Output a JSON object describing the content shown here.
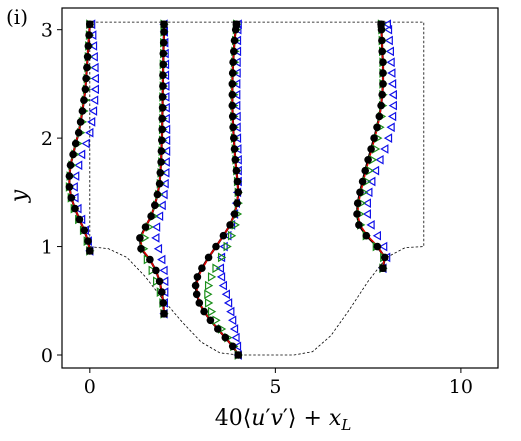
{
  "chart_data": {
    "type": "scatter",
    "panel_label": "(i)",
    "xlabel": "40⟨u′v′⟩ + x_L",
    "ylabel": "y",
    "xlim": [
      -0.75,
      11
    ],
    "ylim": [
      -0.12,
      3.2
    ],
    "xticks": [
      0,
      5,
      10
    ],
    "yticks": [
      0,
      1,
      2,
      3
    ],
    "grid": false,
    "legend": "none",
    "colors": {
      "black": "#000000",
      "red": "#e00000",
      "green": "#1a8f1a",
      "blue": "#1010e8",
      "boundary": "#000000"
    },
    "boundary": {
      "x": [
        0,
        0.5,
        1,
        1.5,
        2,
        2.5,
        3,
        3.5,
        4,
        4.5,
        5,
        5.5,
        6,
        6.5,
        7,
        7.5,
        8,
        8.5,
        9,
        9,
        0,
        0
      ],
      "y": [
        1.0,
        0.98,
        0.9,
        0.72,
        0.5,
        0.3,
        0.12,
        0.02,
        0.0,
        0.0,
        0.0,
        0.0,
        0.03,
        0.18,
        0.42,
        0.68,
        0.9,
        0.99,
        1.0,
        3.07,
        3.07,
        1.0
      ]
    },
    "profiles": [
      {
        "base_x": 0,
        "y": [
          0.96,
          1.05,
          1.15,
          1.25,
          1.35,
          1.45,
          1.55,
          1.65,
          1.75,
          1.85,
          1.95,
          2.05,
          2.15,
          2.25,
          2.35,
          2.45,
          2.55,
          2.65,
          2.75,
          2.85,
          2.95,
          3.05
        ],
        "black": [
          0.0,
          -0.05,
          -0.15,
          -0.28,
          -0.4,
          -0.5,
          -0.55,
          -0.55,
          -0.52,
          -0.45,
          -0.38,
          -0.3,
          -0.25,
          -0.2,
          -0.16,
          -0.12,
          -0.1,
          -0.08,
          -0.06,
          -0.04,
          -0.02,
          0.0
        ],
        "red": [
          0.0,
          -0.05,
          -0.15,
          -0.28,
          -0.4,
          -0.5,
          -0.55,
          -0.55,
          -0.52,
          -0.45,
          -0.38,
          -0.3,
          -0.25,
          -0.2,
          -0.16,
          -0.12,
          -0.1,
          -0.08,
          -0.06,
          -0.04,
          -0.02,
          0.0
        ],
        "green": [
          0.0,
          -0.07,
          -0.17,
          -0.3,
          -0.42,
          -0.5,
          -0.55,
          -0.53,
          -0.48,
          -0.4,
          -0.32,
          -0.25,
          -0.2,
          -0.16,
          -0.12,
          -0.09,
          -0.07,
          -0.05,
          -0.04,
          -0.03,
          -0.01,
          0.0
        ],
        "blue": [
          0.0,
          -0.04,
          -0.12,
          -0.22,
          -0.32,
          -0.4,
          -0.42,
          -0.38,
          -0.3,
          -0.22,
          -0.1,
          0.0,
          0.05,
          0.1,
          0.13,
          0.15,
          0.15,
          0.14,
          0.12,
          0.1,
          0.08,
          0.05
        ],
        "square_idx": [
          0,
          21
        ]
      },
      {
        "base_x": 2,
        "y": [
          0.38,
          0.48,
          0.58,
          0.68,
          0.78,
          0.88,
          0.98,
          1.08,
          1.18,
          1.28,
          1.38,
          1.48,
          1.58,
          1.68,
          1.78,
          1.88,
          1.98,
          2.08,
          2.18,
          2.28,
          2.38,
          2.48,
          2.58,
          2.68,
          2.78,
          2.88,
          2.98,
          3.05
        ],
        "black": [
          0.0,
          -0.02,
          -0.06,
          -0.12,
          -0.22,
          -0.38,
          -0.62,
          -0.65,
          -0.5,
          -0.35,
          -0.25,
          -0.18,
          -0.12,
          -0.1,
          -0.08,
          -0.07,
          -0.06,
          -0.05,
          -0.05,
          -0.04,
          -0.04,
          -0.03,
          -0.03,
          -0.02,
          -0.02,
          -0.01,
          0.0,
          0.0
        ],
        "red": [
          0.0,
          -0.02,
          -0.06,
          -0.12,
          -0.22,
          -0.38,
          -0.6,
          -0.63,
          -0.5,
          -0.35,
          -0.25,
          -0.18,
          -0.12,
          -0.1,
          -0.08,
          -0.07,
          -0.06,
          -0.05,
          -0.05,
          -0.04,
          -0.04,
          -0.03,
          -0.03,
          -0.02,
          -0.02,
          -0.01,
          0.0,
          0.0
        ],
        "green": [
          0.0,
          -0.03,
          -0.1,
          -0.2,
          -0.32,
          -0.45,
          -0.55,
          -0.52,
          -0.4,
          -0.28,
          -0.2,
          -0.14,
          -0.1,
          -0.08,
          -0.06,
          -0.05,
          -0.04,
          -0.04,
          -0.03,
          -0.03,
          -0.03,
          -0.02,
          -0.02,
          -0.02,
          -0.01,
          -0.01,
          0.0,
          0.0
        ],
        "blue": [
          0.0,
          0.01,
          0.02,
          0.02,
          0.0,
          -0.06,
          -0.15,
          -0.22,
          -0.2,
          -0.12,
          -0.05,
          0.0,
          0.03,
          0.05,
          0.06,
          0.07,
          0.07,
          0.07,
          0.06,
          0.06,
          0.05,
          0.05,
          0.04,
          0.04,
          0.03,
          0.02,
          0.01,
          0.0
        ],
        "square_idx": [
          0,
          27
        ]
      },
      {
        "base_x": 4,
        "y": [
          0.0,
          0.08,
          0.16,
          0.24,
          0.32,
          0.4,
          0.48,
          0.56,
          0.64,
          0.72,
          0.8,
          0.9,
          1.0,
          1.1,
          1.2,
          1.3,
          1.4,
          1.5,
          1.6,
          1.7,
          1.8,
          1.9,
          2.0,
          2.1,
          2.2,
          2.3,
          2.4,
          2.5,
          2.6,
          2.7,
          2.8,
          2.9,
          3.0,
          3.05
        ],
        "black": [
          0.0,
          -0.15,
          -0.35,
          -0.55,
          -0.75,
          -0.92,
          -1.05,
          -1.12,
          -1.15,
          -1.1,
          -0.98,
          -0.8,
          -0.6,
          -0.4,
          -0.22,
          -0.1,
          -0.03,
          0.0,
          -0.02,
          -0.05,
          -0.08,
          -0.1,
          -0.12,
          -0.14,
          -0.15,
          -0.16,
          -0.16,
          -0.16,
          -0.15,
          -0.14,
          -0.12,
          -0.1,
          -0.07,
          -0.05
        ],
        "red": [
          0.0,
          -0.15,
          -0.35,
          -0.55,
          -0.75,
          -0.92,
          -1.04,
          -1.1,
          -1.12,
          -1.08,
          -0.96,
          -0.8,
          -0.6,
          -0.4,
          -0.22,
          -0.1,
          -0.03,
          0.0,
          -0.02,
          -0.05,
          -0.08,
          -0.1,
          -0.12,
          -0.14,
          -0.15,
          -0.16,
          -0.16,
          -0.16,
          -0.15,
          -0.14,
          -0.12,
          -0.1,
          -0.07,
          -0.05
        ],
        "green": [
          0.0,
          -0.12,
          -0.28,
          -0.45,
          -0.6,
          -0.72,
          -0.8,
          -0.82,
          -0.8,
          -0.72,
          -0.6,
          -0.45,
          -0.3,
          -0.18,
          -0.08,
          -0.02,
          0.0,
          0.0,
          -0.02,
          -0.04,
          -0.06,
          -0.08,
          -0.1,
          -0.11,
          -0.12,
          -0.12,
          -0.12,
          -0.12,
          -0.11,
          -0.1,
          -0.09,
          -0.07,
          -0.05,
          -0.04
        ],
        "blue": [
          0.0,
          -0.02,
          -0.06,
          -0.1,
          -0.15,
          -0.2,
          -0.26,
          -0.32,
          -0.4,
          -0.45,
          -0.48,
          -0.45,
          -0.38,
          -0.28,
          -0.18,
          -0.1,
          -0.05,
          -0.02,
          0.0,
          0.0,
          0.0,
          -0.01,
          -0.02,
          -0.03,
          -0.03,
          -0.04,
          -0.04,
          -0.04,
          -0.03,
          -0.03,
          -0.02,
          -0.02,
          -0.01,
          0.0
        ],
        "square_idx": [
          0,
          33
        ]
      },
      {
        "base_x": 7.9,
        "y": [
          0.8,
          0.9,
          1.0,
          1.1,
          1.2,
          1.3,
          1.4,
          1.5,
          1.6,
          1.7,
          1.8,
          1.9,
          2.0,
          2.1,
          2.2,
          2.3,
          2.4,
          2.5,
          2.6,
          2.7,
          2.8,
          2.9,
          3.0,
          3.05
        ],
        "black": [
          0.0,
          0.05,
          -0.15,
          -0.45,
          -0.65,
          -0.7,
          -0.68,
          -0.62,
          -0.55,
          -0.48,
          -0.4,
          -0.32,
          -0.24,
          -0.16,
          -0.1,
          -0.05,
          -0.02,
          0.0,
          0.0,
          0.0,
          -0.02,
          -0.03,
          -0.04,
          -0.05
        ],
        "red": [
          0.0,
          0.04,
          -0.14,
          -0.42,
          -0.62,
          -0.68,
          -0.66,
          -0.6,
          -0.53,
          -0.46,
          -0.38,
          -0.3,
          -0.22,
          -0.15,
          -0.09,
          -0.05,
          -0.02,
          0.0,
          0.0,
          0.0,
          -0.02,
          -0.03,
          -0.04,
          -0.05
        ],
        "green": [
          0.0,
          0.02,
          -0.18,
          -0.45,
          -0.6,
          -0.62,
          -0.58,
          -0.52,
          -0.44,
          -0.36,
          -0.28,
          -0.2,
          -0.14,
          -0.08,
          -0.04,
          -0.01,
          0.0,
          0.0,
          0.0,
          0.0,
          -0.01,
          -0.02,
          -0.03,
          -0.04
        ],
        "blue": [
          0.0,
          0.1,
          0.02,
          -0.15,
          -0.32,
          -0.42,
          -0.42,
          -0.38,
          -0.3,
          -0.2,
          -0.08,
          0.05,
          0.15,
          0.22,
          0.26,
          0.28,
          0.28,
          0.26,
          0.24,
          0.22,
          0.2,
          0.17,
          0.15,
          0.12
        ],
        "square_idx": [
          0,
          23
        ]
      }
    ]
  }
}
